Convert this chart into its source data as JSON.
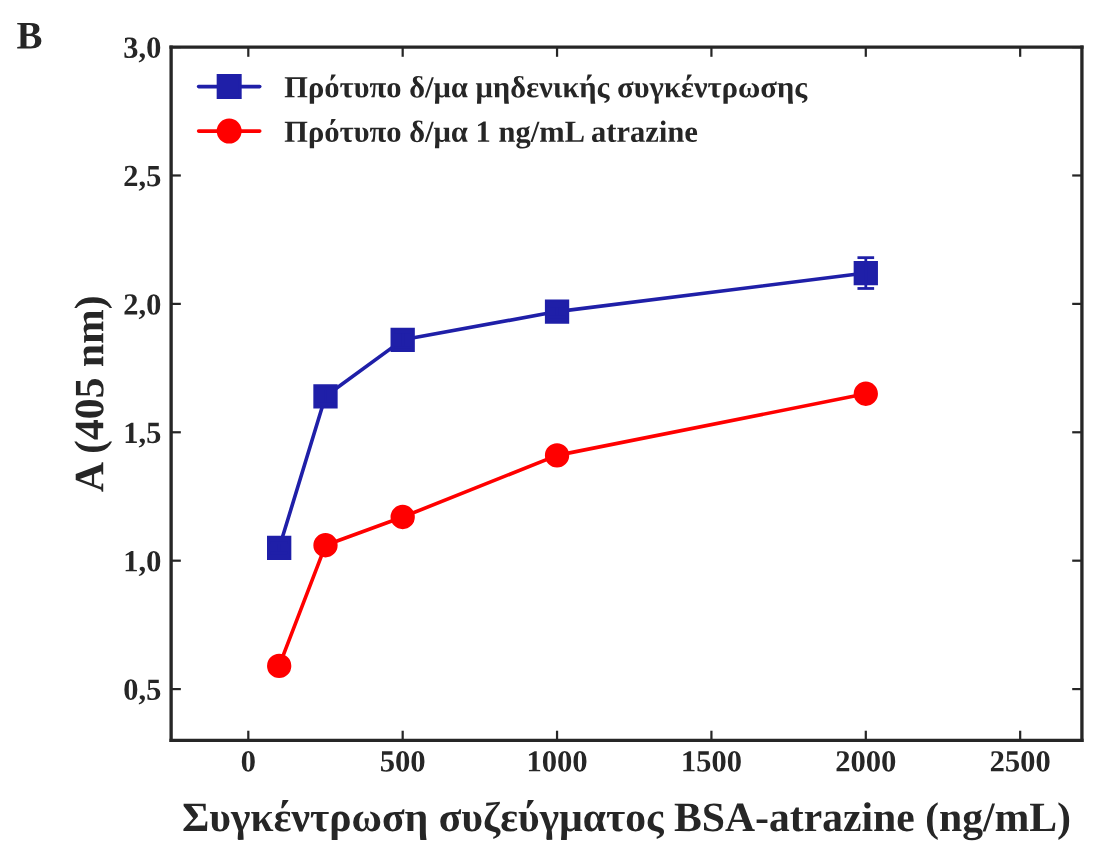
{
  "chart_data": {
    "type": "line",
    "xlabel": "Συγκέντρωση συζεύγματος BSA-atrazine (ng/mL)",
    "ylabel": "A (405 nm)",
    "annotations": [
      "B"
    ],
    "x": [
      100,
      250,
      500,
      1000,
      2000
    ],
    "series": [
      {
        "name": "Πρότυπο δ/μα μηδενικής συγκέντρωσης",
        "color": "#1f1fa8",
        "marker": "square",
        "values": [
          1.05,
          1.64,
          1.86,
          1.97,
          2.12
        ],
        "errors": [
          0.02,
          0.03,
          0.03,
          0.02,
          0.06
        ]
      },
      {
        "name": "Πρότυπο δ/μα 1 ng/mL atrazine",
        "color": "#ff0000",
        "marker": "circle",
        "values": [
          0.59,
          1.06,
          1.17,
          1.41,
          1.65
        ],
        "errors": [
          0.01,
          0.01,
          0.01,
          0.01,
          0.01
        ]
      }
    ],
    "xlim": [
      -250,
      2700
    ],
    "xticks": [
      0,
      500,
      1000,
      1500,
      2000,
      2500
    ],
    "ylim": [
      0.3,
      3.0
    ],
    "yticks": [
      {
        "value": 0.5,
        "label": "0,5"
      },
      {
        "value": 1.0,
        "label": "1,0"
      },
      {
        "value": 1.5,
        "label": "1,5"
      },
      {
        "value": 2.0,
        "label": "2,0"
      },
      {
        "value": 2.5,
        "label": "2,5"
      },
      {
        "value": 3.0,
        "label": "3,0"
      }
    ],
    "legend": "top left",
    "grid": false,
    "line_style": "solid"
  }
}
